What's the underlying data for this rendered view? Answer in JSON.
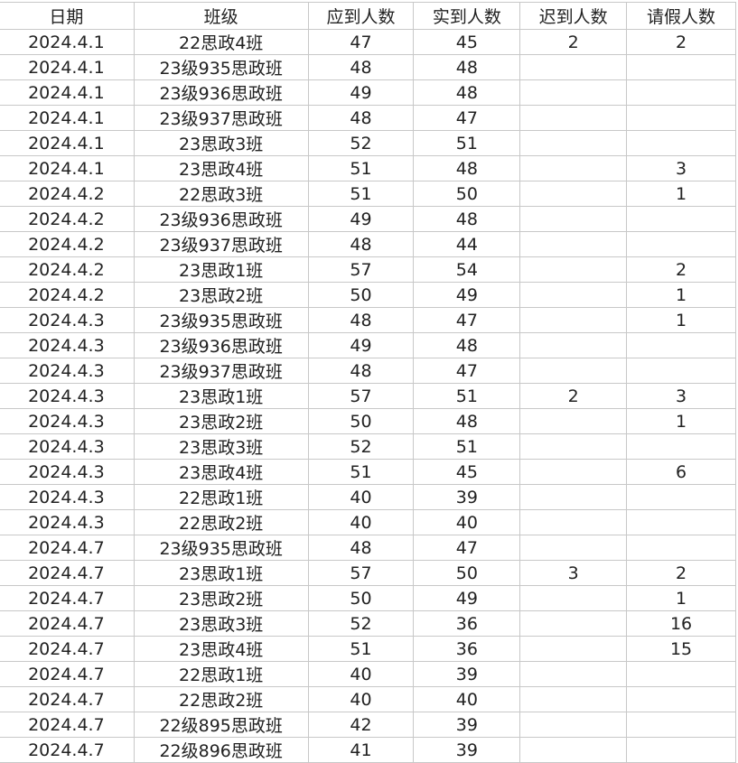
{
  "headers": [
    "日期",
    "班级",
    "应到人数",
    "实到人数",
    "迟到人数",
    "请假人数"
  ],
  "rows": [
    [
      "2024.4.1",
      "22思政4班",
      "47",
      "45",
      "2",
      "2"
    ],
    [
      "2024.4.1",
      "23级935思政班",
      "48",
      "48",
      "",
      ""
    ],
    [
      "2024.4.1",
      "23级936思政班",
      "49",
      "48",
      "",
      ""
    ],
    [
      "2024.4.1",
      "23级937思政班",
      "48",
      "47",
      "",
      ""
    ],
    [
      "2024.4.1",
      "23思政3班",
      "52",
      "51",
      "",
      ""
    ],
    [
      "2024.4.1",
      "23思政4班",
      "51",
      "48",
      "",
      "3"
    ],
    [
      "2024.4.2",
      "22思政3班",
      "51",
      "50",
      "",
      "1"
    ],
    [
      "2024.4.2",
      "23级936思政班",
      "49",
      "48",
      "",
      ""
    ],
    [
      "2024.4.2",
      "23级937思政班",
      "48",
      "44",
      "",
      ""
    ],
    [
      "2024.4.2",
      "23思政1班",
      "57",
      "54",
      "",
      "2"
    ],
    [
      "2024.4.2",
      "23思政2班",
      "50",
      "49",
      "",
      "1"
    ],
    [
      "2024.4.3",
      "23级935思政班",
      "48",
      "47",
      "",
      "1"
    ],
    [
      "2024.4.3",
      "23级936思政班",
      "49",
      "48",
      "",
      ""
    ],
    [
      "2024.4.3",
      "23级937思政班",
      "48",
      "47",
      "",
      ""
    ],
    [
      "2024.4.3",
      "23思政1班",
      "57",
      "51",
      "2",
      "3"
    ],
    [
      "2024.4.3",
      "23思政2班",
      "50",
      "48",
      "",
      "1"
    ],
    [
      "2024.4.3",
      "23思政3班",
      "52",
      "51",
      "",
      ""
    ],
    [
      "2024.4.3",
      "23思政4班",
      "51",
      "45",
      "",
      "6"
    ],
    [
      "2024.4.3",
      "22思政1班",
      "40",
      "39",
      "",
      ""
    ],
    [
      "2024.4.3",
      "22思政2班",
      "40",
      "40",
      "",
      ""
    ],
    [
      "2024.4.7",
      "23级935思政班",
      "48",
      "47",
      "",
      ""
    ],
    [
      "2024.4.7",
      "23思政1班",
      "57",
      "50",
      "3",
      "2"
    ],
    [
      "2024.4.7",
      "23思政2班",
      "50",
      "49",
      "",
      "1"
    ],
    [
      "2024.4.7",
      "23思政3班",
      "52",
      "36",
      "",
      "16"
    ],
    [
      "2024.4.7",
      "23思政4班",
      "51",
      "36",
      "",
      "15"
    ],
    [
      "2024.4.7",
      "22思政1班",
      "40",
      "39",
      "",
      ""
    ],
    [
      "2024.4.7",
      "22思政2班",
      "40",
      "40",
      "",
      ""
    ],
    [
      "2024.4.7",
      "22级895思政班",
      "42",
      "39",
      "",
      ""
    ],
    [
      "2024.4.7",
      "22级896思政班",
      "41",
      "39",
      "",
      ""
    ]
  ]
}
